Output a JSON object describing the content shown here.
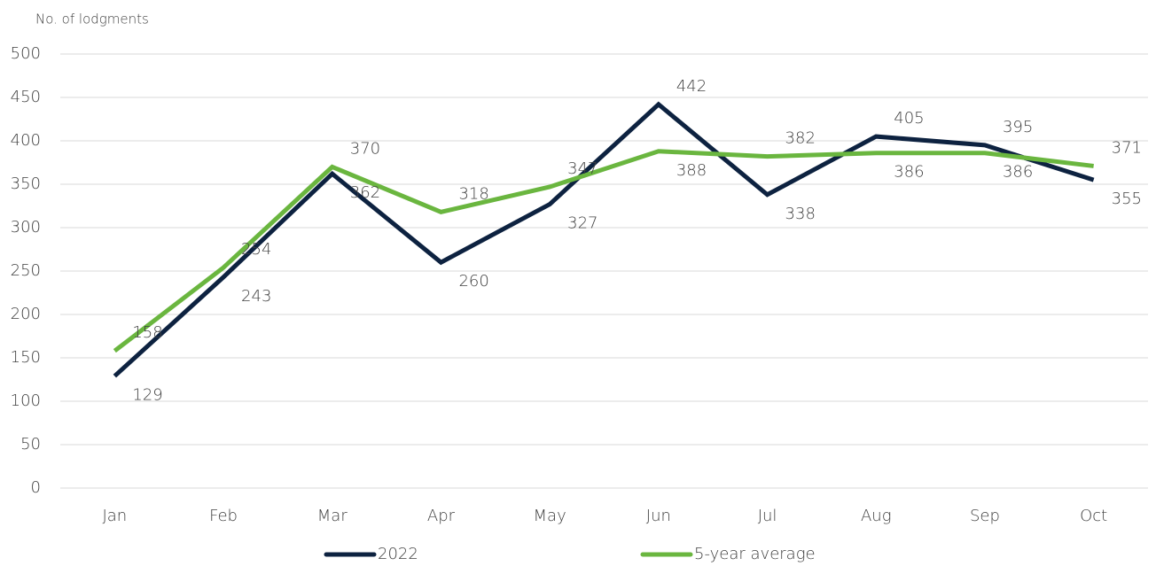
{
  "chart_data": {
    "type": "line",
    "y_label": "No. of lodgments",
    "categories": [
      "Jan",
      "Feb",
      "Mar",
      "Apr",
      "May",
      "Jun",
      "Jul",
      "Aug",
      "Sep",
      "Oct"
    ],
    "series": [
      {
        "name": "2022",
        "color": "#0d2240",
        "values": [
          129,
          243,
          362,
          260,
          327,
          442,
          338,
          405,
          395,
          355
        ]
      },
      {
        "name": "5-year average",
        "color": "#6ab63f",
        "values": [
          158,
          254,
          370,
          318,
          347,
          388,
          382,
          386,
          386,
          371
        ]
      }
    ],
    "ylim": [
      0,
      500
    ],
    "yticks": [
      0,
      50,
      100,
      150,
      200,
      250,
      300,
      350,
      400,
      450,
      500
    ],
    "grid": true,
    "legend": "bottom"
  }
}
